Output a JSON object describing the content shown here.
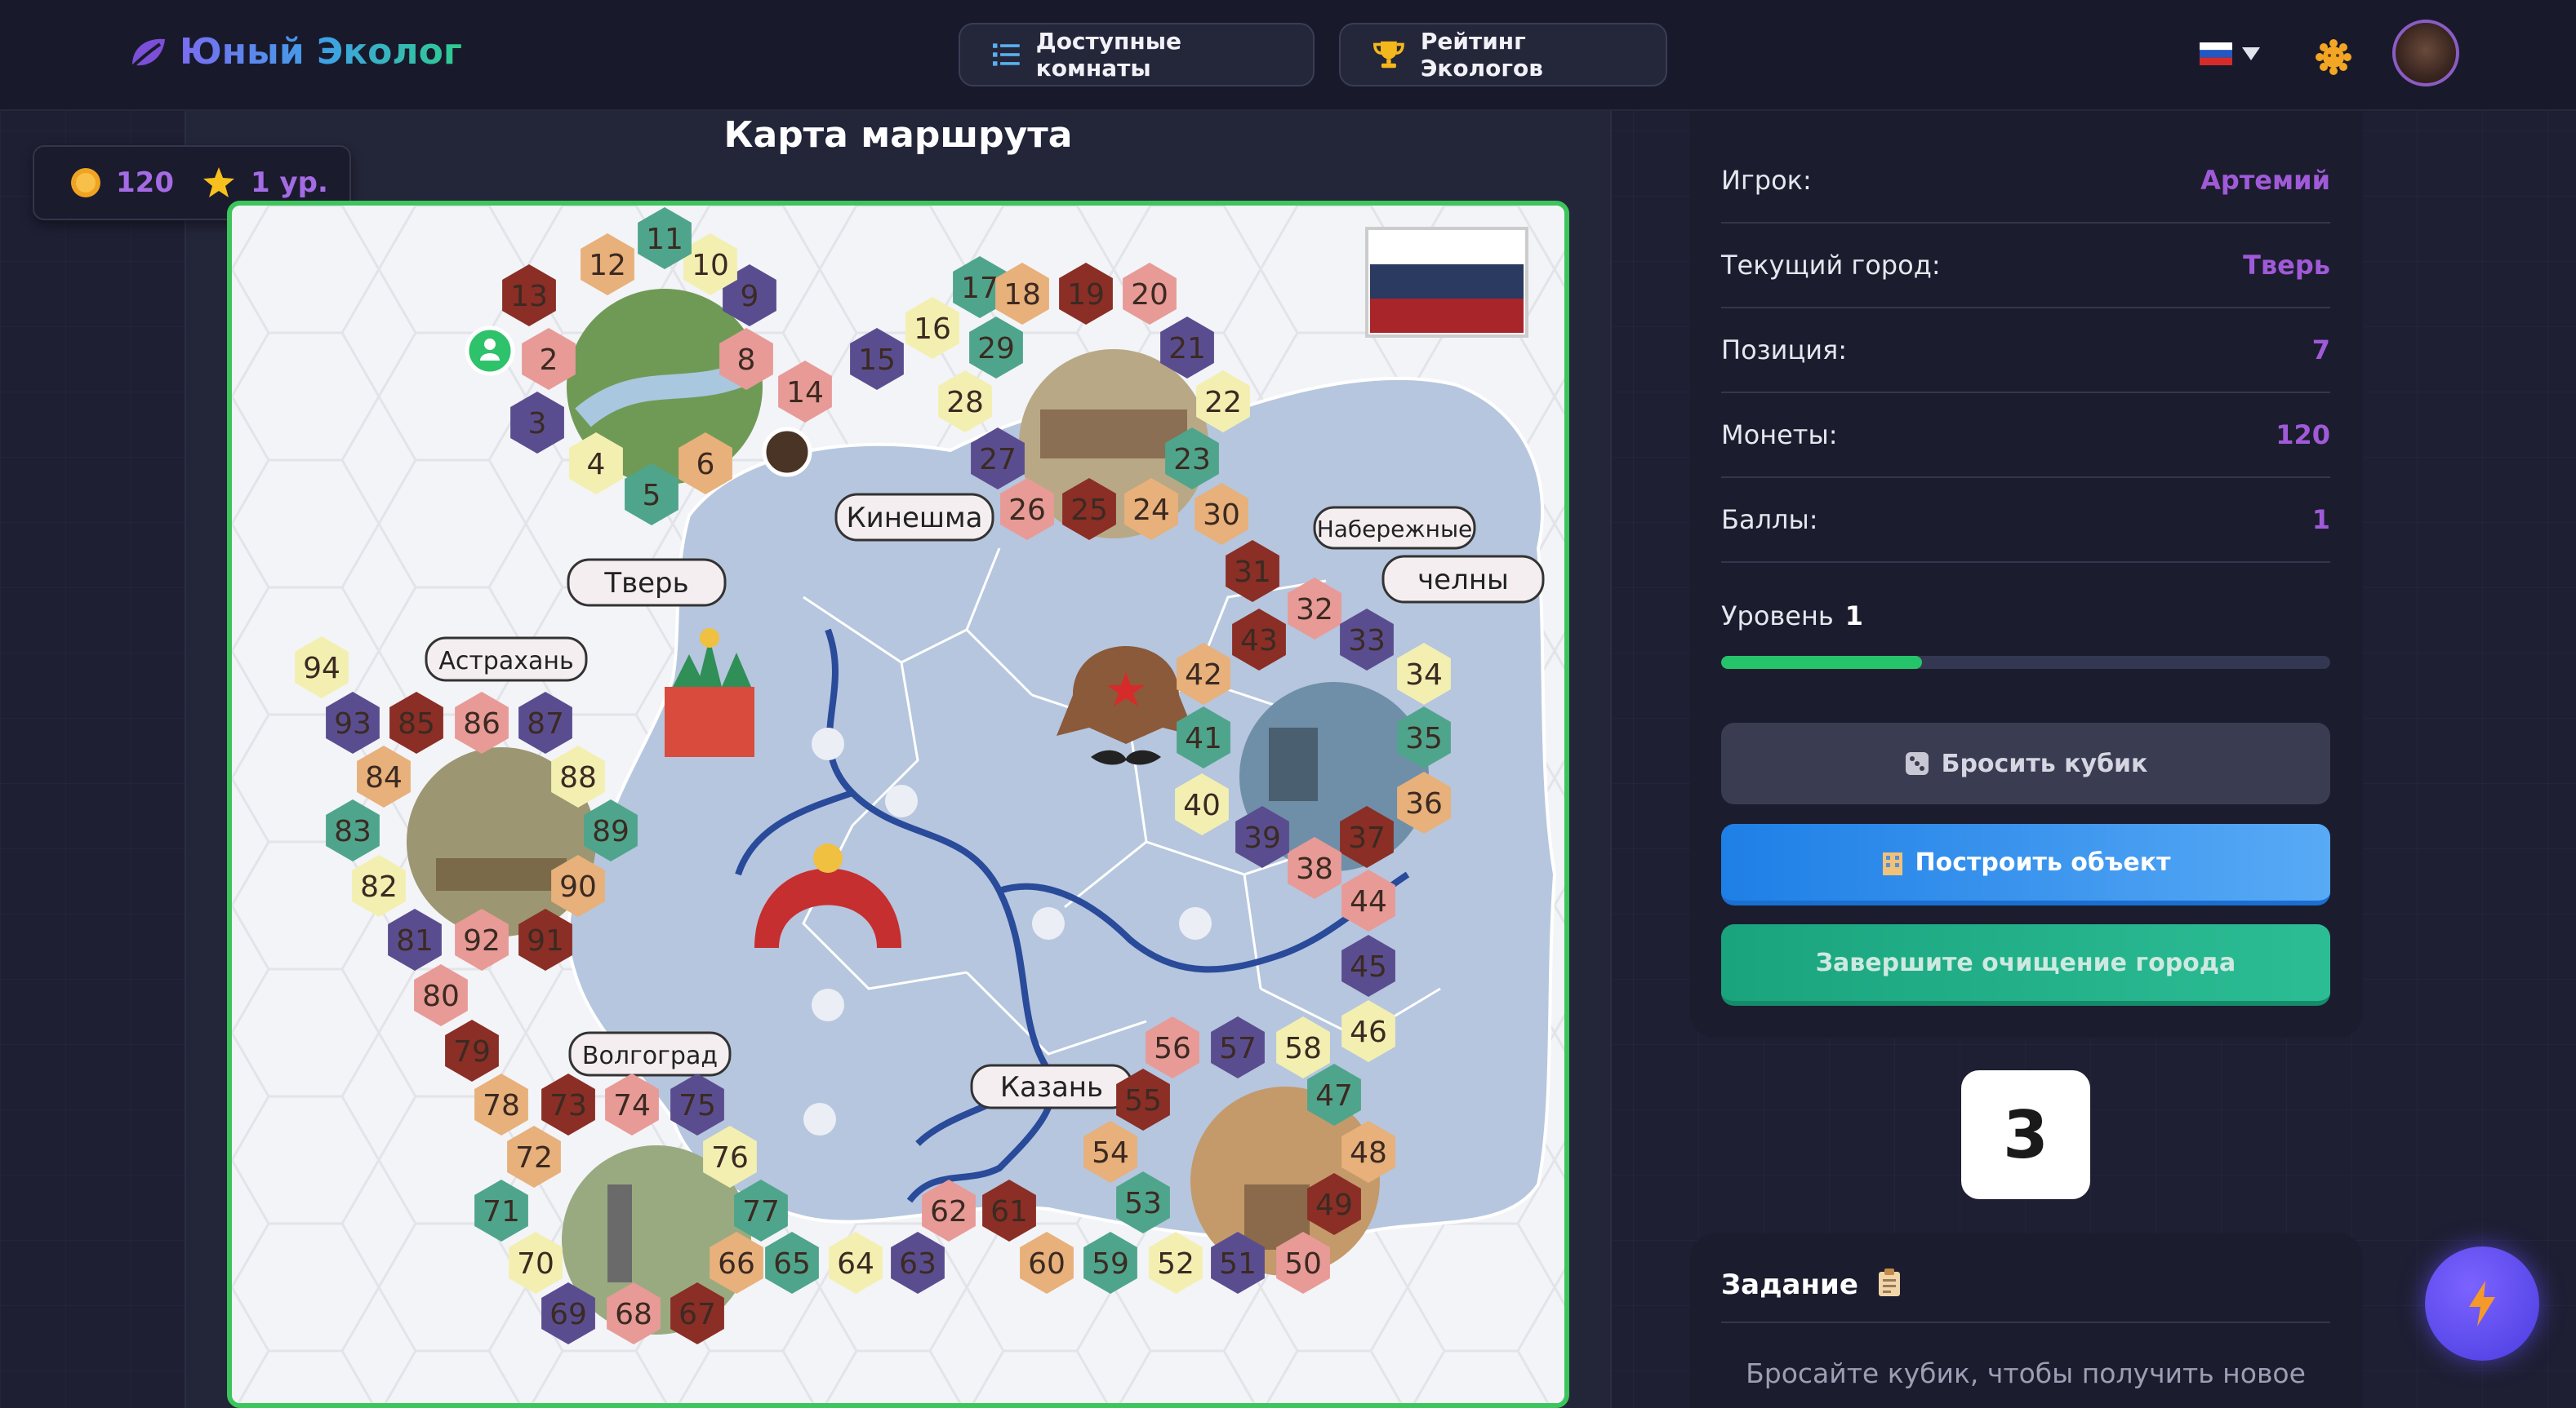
{
  "app": {
    "title": "Юный Эколог"
  },
  "nav": {
    "rooms_label": "Доступные комнаты",
    "rating_label": "Рейтинг Экологов"
  },
  "map": {
    "title": "Карта маршрута",
    "cities": [
      "Тверь",
      "Кинешма",
      "Набережные",
      "челны",
      "Астрахань",
      "Волгоград",
      "Казань"
    ]
  },
  "stats": {
    "coins": "120",
    "level": "1 ур."
  },
  "player": {
    "name_label": "Игрок:",
    "name": "Артемий",
    "city_label": "Текущий город:",
    "city": "Тверь",
    "position_label": "Позиция:",
    "position": "7",
    "coins_label": "Монеты:",
    "coins": "120",
    "points_label": "Баллы:",
    "points": "1",
    "level_label": "Уровень",
    "level": "1",
    "level_progress": 0.33
  },
  "actions": {
    "roll_label": "Бросить кубик",
    "build_label": "Построить объект",
    "finish_label": "Завершите очищение города"
  },
  "dice": {
    "value": "3"
  },
  "task": {
    "title": "Задание",
    "text": "Бросайте кубик, чтобы получить новое"
  }
}
